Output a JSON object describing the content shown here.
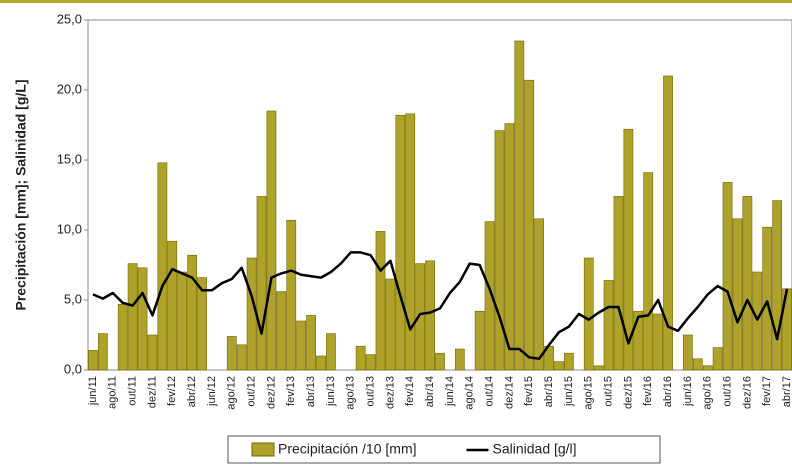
{
  "chart_data": {
    "type": "bar",
    "y_label": "Precipitación [mm]; Salinidad [g/L]",
    "categories": [
      "jun/11",
      null,
      "ago/11",
      null,
      "out/11",
      null,
      "dez/11",
      null,
      "fev/12",
      null,
      "abr/12",
      null,
      "jun/12",
      null,
      "ago/12",
      null,
      "out/12",
      null,
      "dez/12",
      null,
      "fev/13",
      null,
      "abr/13",
      null,
      "jun/13",
      null,
      "ago/13",
      null,
      "out/13",
      null,
      "dez/13",
      null,
      "fev/14",
      null,
      "abr/14",
      null,
      "jun/14",
      null,
      "ago/14",
      null,
      "out/14",
      null,
      "dez/14",
      null,
      "fev/15",
      null,
      "abr/15",
      null,
      "jun/15",
      null,
      "ago/15",
      null,
      "out/15",
      null,
      "dez/15",
      null,
      "fev/16",
      null,
      "abr/16",
      null,
      "jun/16",
      null,
      "ago/16",
      null,
      "out/16",
      null,
      "dez/16",
      null,
      "fev/17",
      null,
      "abr/17"
    ],
    "series": [
      {
        "name": "Precipitación /10 [mm]",
        "type": "bar",
        "color": "#aea22a",
        "values": [
          1.4,
          2.6,
          0,
          4.7,
          7.6,
          7.3,
          2.5,
          14.8,
          9.2,
          7.0,
          8.2,
          6.6,
          0,
          0,
          2.4,
          1.8,
          8.0,
          12.4,
          18.5,
          5.6,
          10.7,
          3.5,
          3.9,
          1.0,
          2.6,
          0,
          0,
          1.7,
          1.1,
          9.9,
          6.5,
          18.2,
          18.3,
          7.6,
          7.8,
          1.2,
          0,
          1.5,
          0,
          4.2,
          10.6,
          17.1,
          17.6,
          23.5,
          20.7,
          10.8,
          1.7,
          0.6,
          1.2,
          0,
          8.0,
          0.3,
          6.4,
          12.4,
          17.2,
          4.2,
          14.1,
          4.0,
          21.0,
          0,
          2.5,
          0.8,
          0.3,
          1.6,
          13.4,
          10.8,
          12.4,
          7.0,
          10.2,
          12.1,
          5.8
        ]
      },
      {
        "name": "Salinidad [g/l]",
        "type": "line",
        "color": "#000000",
        "values": [
          5.4,
          5.1,
          5.5,
          4.8,
          4.6,
          5.5,
          3.9,
          6.0,
          7.2,
          6.9,
          6.6,
          5.7,
          5.7,
          6.2,
          6.5,
          7.3,
          5.3,
          2.6,
          6.6,
          6.9,
          7.1,
          6.8,
          6.7,
          6.6,
          7.0,
          7.6,
          8.4,
          8.4,
          8.2,
          7.1,
          7.8,
          5.3,
          2.9,
          4.0,
          4.1,
          4.4,
          5.5,
          6.3,
          7.6,
          7.5,
          5.8,
          3.8,
          1.5,
          1.5,
          0.9,
          0.8,
          1.8,
          2.7,
          3.1,
          4.0,
          3.6,
          4.1,
          4.5,
          4.5,
          1.9,
          3.8,
          3.9,
          5.0,
          3.1,
          2.8,
          3.7,
          4.5,
          5.4,
          6.0,
          5.6,
          3.4,
          5.0,
          3.6,
          4.9,
          2.2,
          5.8
        ]
      }
    ],
    "ylim": [
      0,
      25
    ],
    "yticks": [
      {
        "value": 0,
        "label": "0,0"
      },
      {
        "value": 5,
        "label": "5,0"
      },
      {
        "value": 10,
        "label": "10,0"
      },
      {
        "value": 15,
        "label": "15,0"
      },
      {
        "value": 20,
        "label": "20,0"
      },
      {
        "value": 25,
        "label": "25,0"
      }
    ],
    "legend": "bottom"
  }
}
